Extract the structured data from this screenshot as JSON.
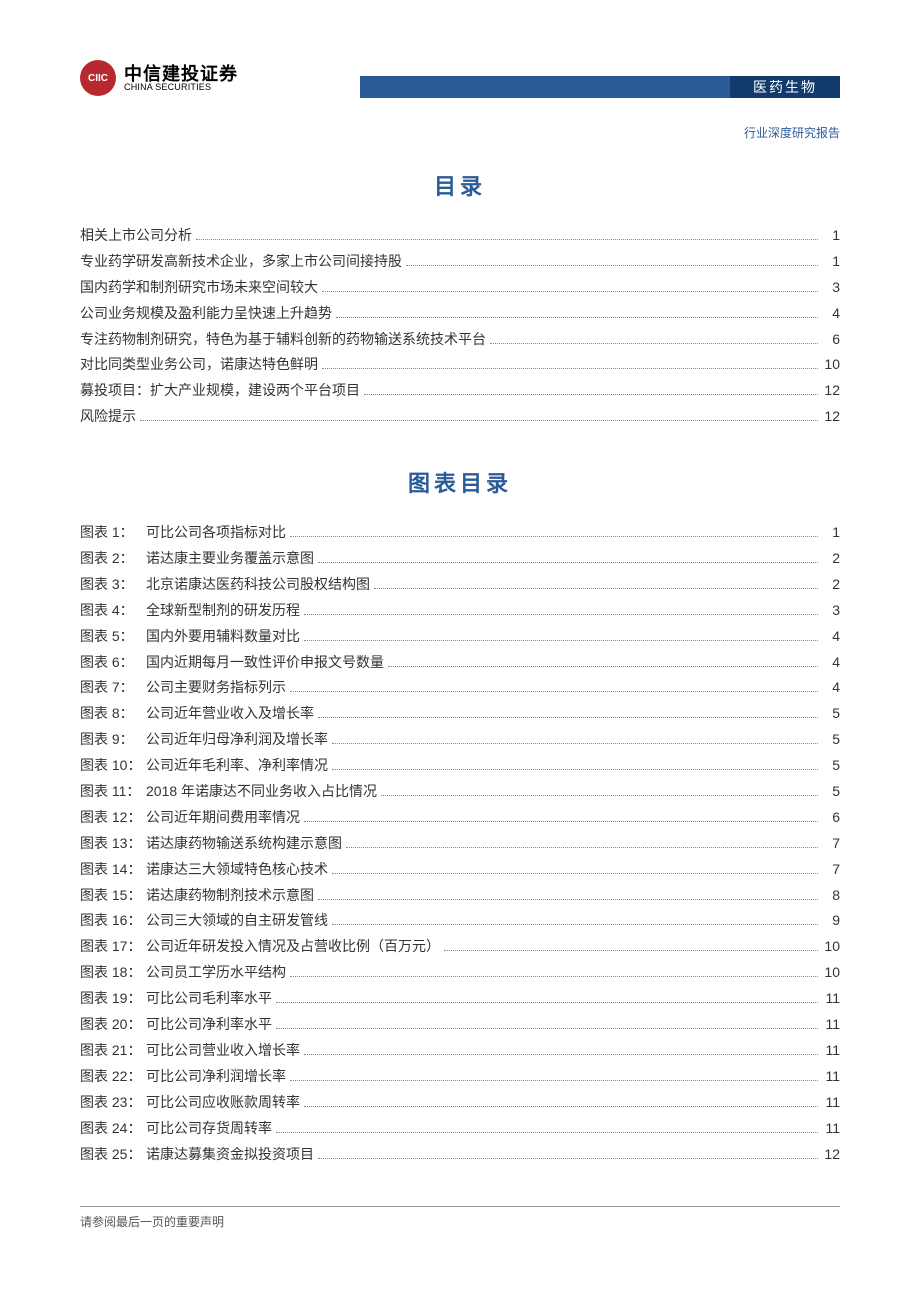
{
  "header": {
    "logo_cn": "中信建投证券",
    "logo_en": "CHINA SECURITIES",
    "logo_glyph": "CIIC",
    "category_badge": "医药生物",
    "subheader": "行业深度研究报告",
    "colors": {
      "brand_red": "#b8292f",
      "brand_blue": "#2b5a99",
      "brand_blue_dark": "#123a6b"
    }
  },
  "titles": {
    "toc": "目录",
    "figures": "图表目录"
  },
  "toc": [
    {
      "label": "相关上市公司分析",
      "page": "1"
    },
    {
      "label": "专业药学研发高新技术企业，多家上市公司间接持股",
      "page": "1"
    },
    {
      "label": "国内药学和制剂研究市场未来空间较大",
      "page": "3"
    },
    {
      "label": "公司业务规模及盈利能力呈快速上升趋势",
      "page": "4"
    },
    {
      "label": "专注药物制剂研究，特色为基于辅料创新的药物输送系统技术平台",
      "page": "6"
    },
    {
      "label": "对比同类型业务公司，诺康达特色鲜明",
      "page": "10"
    },
    {
      "label": "募投项目：扩大产业规模，建设两个平台项目",
      "page": "12"
    },
    {
      "label": "风险提示",
      "page": "12"
    }
  ],
  "figures": [
    {
      "prefix": "图表 1：",
      "label": "可比公司各项指标对比",
      "page": "1"
    },
    {
      "prefix": "图表 2：",
      "label": "诺达康主要业务覆盖示意图",
      "page": "2"
    },
    {
      "prefix": "图表 3：",
      "label": "北京诺康达医药科技公司股权结构图",
      "page": "2"
    },
    {
      "prefix": "图表 4：",
      "label": "全球新型制剂的研发历程",
      "page": "3"
    },
    {
      "prefix": "图表 5：",
      "label": "国内外要用辅料数量对比",
      "page": "4"
    },
    {
      "prefix": "图表 6：",
      "label": "国内近期每月一致性评价申报文号数量",
      "page": "4"
    },
    {
      "prefix": "图表 7：",
      "label": "公司主要财务指标列示",
      "page": "4"
    },
    {
      "prefix": "图表 8：",
      "label": "公司近年营业收入及增长率",
      "page": "5"
    },
    {
      "prefix": "图表 9：",
      "label": "公司近年归母净利润及增长率",
      "page": "5"
    },
    {
      "prefix": "图表 10：",
      "label": "公司近年毛利率、净利率情况",
      "page": "5"
    },
    {
      "prefix": "图表 11：",
      "label": "2018 年诺康达不同业务收入占比情况",
      "page": "5"
    },
    {
      "prefix": "图表 12：",
      "label": "公司近年期间费用率情况",
      "page": "6"
    },
    {
      "prefix": "图表 13：",
      "label": "诺达康药物输送系统构建示意图",
      "page": "7"
    },
    {
      "prefix": "图表 14：",
      "label": "诺康达三大领域特色核心技术",
      "page": "7"
    },
    {
      "prefix": "图表 15：",
      "label": "诺达康药物制剂技术示意图",
      "page": "8"
    },
    {
      "prefix": "图表 16：",
      "label": "公司三大领域的自主研发管线",
      "page": "9"
    },
    {
      "prefix": "图表 17：",
      "label": "公司近年研发投入情况及占营收比例（百万元）",
      "page": "10"
    },
    {
      "prefix": "图表 18：",
      "label": "公司员工学历水平结构",
      "page": "10"
    },
    {
      "prefix": "图表 19：",
      "label": "可比公司毛利率水平",
      "page": "11"
    },
    {
      "prefix": "图表 20：",
      "label": "可比公司净利率水平",
      "page": "11"
    },
    {
      "prefix": "图表 21：",
      "label": "可比公司营业收入增长率",
      "page": "11"
    },
    {
      "prefix": "图表 22：",
      "label": "可比公司净利润增长率",
      "page": "11"
    },
    {
      "prefix": "图表 23：",
      "label": "可比公司应收账款周转率",
      "page": "11"
    },
    {
      "prefix": "图表 24：",
      "label": "可比公司存货周转率",
      "page": "11"
    },
    {
      "prefix": "图表 25：",
      "label": "诺康达募集资金拟投资项目",
      "page": "12"
    }
  ],
  "footer": "请参阅最后一页的重要声明"
}
